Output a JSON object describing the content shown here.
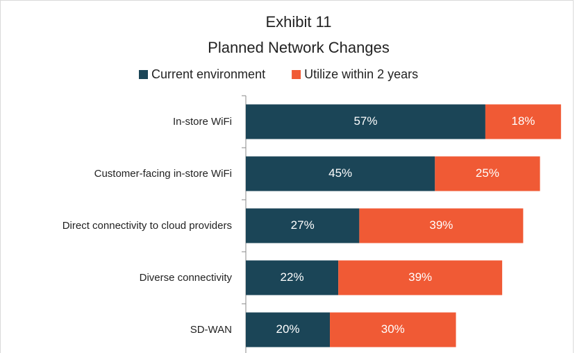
{
  "chart_data": {
    "type": "stacked-bar-horizontal",
    "title": "Exhibit 11",
    "subtitle": "Planned Network Changes",
    "categories": [
      "In-store WiFi",
      "Customer-facing in-store WiFi",
      "Direct connectivity to cloud providers",
      "Diverse connectivity",
      "SD-WAN"
    ],
    "series": [
      {
        "name": "Current environment",
        "color": "#1b4557",
        "values": [
          57,
          45,
          27,
          22,
          20
        ],
        "value_labels": [
          "57%",
          "45%",
          "27%",
          "22%",
          "20%"
        ]
      },
      {
        "name": "Utilize within 2 years",
        "color": "#f05a35",
        "values": [
          18,
          25,
          39,
          39,
          30
        ],
        "value_labels": [
          "18%",
          "25%",
          "39%",
          "39%",
          "30%"
        ]
      }
    ],
    "xlim": [
      0,
      78
    ]
  }
}
